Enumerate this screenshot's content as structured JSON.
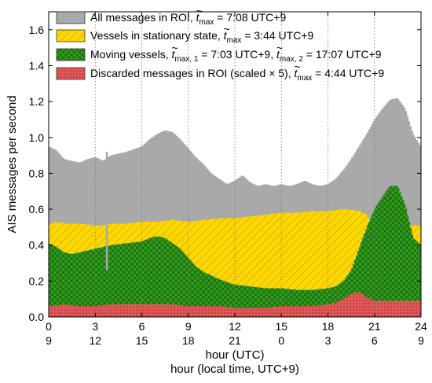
{
  "chart_data": {
    "type": "area",
    "xlabel": "hour (UTC)",
    "xlabel_secondary": "hour (local time, UTC+9)",
    "ylabel": "AIS messages per second",
    "xlim": [
      0,
      24
    ],
    "ylim": [
      0,
      1.7
    ],
    "x_ticks": [
      0,
      3,
      6,
      9,
      12,
      15,
      18,
      21,
      24
    ],
    "x_tick_labels": [
      "0",
      "3",
      "6",
      "9",
      "12",
      "15",
      "18",
      "21",
      "24"
    ],
    "x_tick_labels_secondary": [
      "9",
      "12",
      "15",
      "18",
      "21",
      "0",
      "3",
      "6",
      "9"
    ],
    "y_ticks": [
      0,
      0.2,
      0.4,
      0.6,
      0.8,
      1.0,
      1.2,
      1.4,
      1.6
    ],
    "y_tick_labels": [
      "0.0",
      "0.2",
      "0.4",
      "0.6",
      "0.8",
      "1.0",
      "1.2",
      "1.4",
      "1.6"
    ],
    "grid": "vertical dotted lines at x ticks",
    "legend_placement": "top",
    "colors": {
      "all": "#a9a9a9",
      "stationary": "#ffd700",
      "moving": "#2e9e1a",
      "discarded": "#e05858"
    },
    "legend": [
      {
        "base": "All messages in ROI, ",
        "t": "t",
        "sub": "max",
        "val": " = 7:08 UTC+9"
      },
      {
        "base": "Vessels in stationary state, ",
        "t": "t",
        "sub": "max",
        "val": " = 3:44 UTC+9"
      },
      {
        "base": "Moving vessels, ",
        "t": "t",
        "sub": "max, 1",
        "val": " = 7:03 UTC+9, ",
        "t2": "t",
        "sub2": "max, 2",
        "val2": " = 17:07 UTC+9"
      },
      {
        "base": "Discarded messages in ROI (scaled × 5),  ",
        "t": "t",
        "sub": "max",
        "val": " = 4:44 UTC+9"
      }
    ],
    "series": [
      {
        "key": "all",
        "x": [
          0,
          0.5,
          1,
          1.5,
          2,
          2.5,
          3,
          3.3,
          3.5,
          4,
          5,
          6,
          6.5,
          7,
          7.5,
          8,
          8.5,
          9,
          9.5,
          10,
          10.5,
          11,
          11.5,
          12,
          12.5,
          13,
          13.5,
          14,
          14.5,
          15,
          15.5,
          16,
          16.5,
          17,
          17.5,
          18,
          18.5,
          19,
          19.5,
          20,
          20.5,
          21,
          21.5,
          22,
          22.5,
          23,
          23.5,
          24
        ],
        "y": [
          0.95,
          0.93,
          0.88,
          0.87,
          0.86,
          0.88,
          0.89,
          0.88,
          0.87,
          0.9,
          0.92,
          0.95,
          0.99,
          1.02,
          1.04,
          1.03,
          0.99,
          0.94,
          0.89,
          0.85,
          0.8,
          0.77,
          0.74,
          0.76,
          0.79,
          0.75,
          0.73,
          0.74,
          0.73,
          0.74,
          0.73,
          0.74,
          0.76,
          0.74,
          0.73,
          0.74,
          0.77,
          0.82,
          0.88,
          0.95,
          1.02,
          1.1,
          1.16,
          1.21,
          1.22,
          1.16,
          1.02,
          0.95
        ]
      },
      {
        "key": "stationary",
        "x": [
          0,
          0.5,
          1,
          2,
          3,
          3.5,
          4,
          5,
          6,
          7,
          8,
          9,
          10,
          11,
          12,
          13,
          14,
          15,
          16,
          17,
          18,
          19,
          20,
          20.5,
          21,
          21.5,
          22,
          22.5,
          23,
          23.5,
          24
        ],
        "y": [
          0.51,
          0.53,
          0.52,
          0.52,
          0.51,
          0.51,
          0.52,
          0.52,
          0.53,
          0.53,
          0.54,
          0.53,
          0.54,
          0.55,
          0.55,
          0.56,
          0.57,
          0.58,
          0.58,
          0.59,
          0.59,
          0.6,
          0.59,
          0.57,
          0.5,
          0.48,
          0.49,
          0.52,
          0.51,
          0.51,
          0.51
        ]
      },
      {
        "key": "moving",
        "x": [
          0,
          0.5,
          1,
          1.5,
          2,
          3,
          3.5,
          4,
          5,
          6,
          6.5,
          7,
          7.5,
          8,
          8.5,
          9,
          9.5,
          10,
          11,
          12,
          13,
          14,
          15,
          16,
          17,
          18,
          18.5,
          19,
          19.5,
          20,
          20.5,
          21,
          21.5,
          22,
          22.5,
          23,
          23.5,
          24
        ],
        "y": [
          0.41,
          0.39,
          0.36,
          0.35,
          0.36,
          0.38,
          0.39,
          0.4,
          0.41,
          0.42,
          0.44,
          0.45,
          0.44,
          0.41,
          0.38,
          0.33,
          0.28,
          0.25,
          0.21,
          0.18,
          0.17,
          0.16,
          0.16,
          0.15,
          0.15,
          0.16,
          0.17,
          0.2,
          0.26,
          0.38,
          0.5,
          0.6,
          0.67,
          0.73,
          0.73,
          0.62,
          0.44,
          0.4
        ]
      },
      {
        "key": "discarded",
        "x": [
          0,
          1,
          2,
          3,
          4,
          5,
          6,
          7,
          8,
          9,
          10,
          11,
          12,
          13,
          14,
          15,
          16,
          17,
          18,
          18.5,
          19,
          19.5,
          20,
          20.5,
          21,
          22,
          23,
          24
        ],
        "y": [
          0.06,
          0.07,
          0.06,
          0.06,
          0.07,
          0.07,
          0.07,
          0.07,
          0.07,
          0.06,
          0.06,
          0.06,
          0.05,
          0.05,
          0.05,
          0.06,
          0.06,
          0.06,
          0.07,
          0.08,
          0.1,
          0.13,
          0.14,
          0.11,
          0.09,
          0.09,
          0.09,
          0.09
        ]
      }
    ],
    "annotations": [
      {
        "type": "spike",
        "x": 3.75,
        "y_bottom": 0.26,
        "y_top": 0.92,
        "color": "#a9a9a9"
      }
    ]
  }
}
